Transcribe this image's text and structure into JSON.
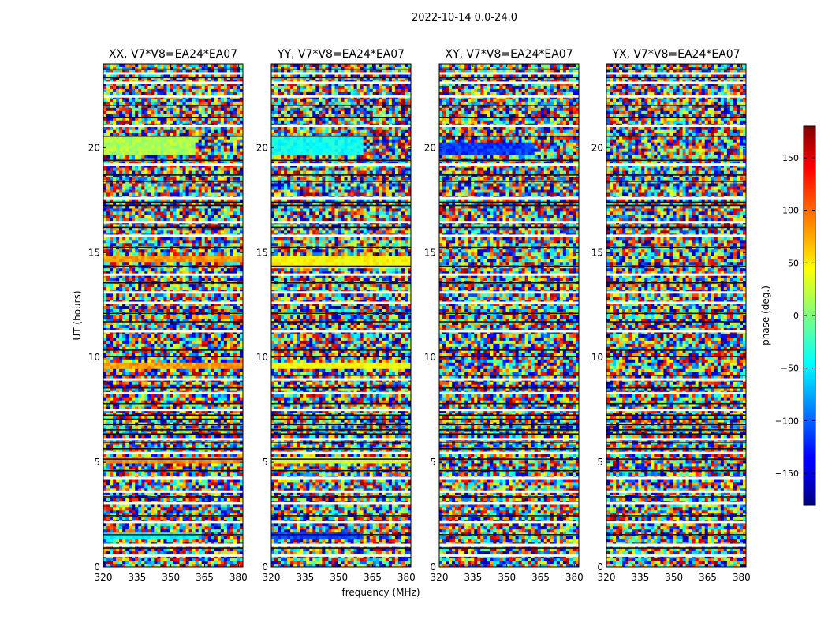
{
  "chart_data": {
    "type": "heatmap",
    "suptitle": "2022-10-14 0.0-24.0",
    "xlabel": "frequency (MHz)",
    "ylabel": "UT (hours)",
    "xlim": [
      320,
      382
    ],
    "ylim": [
      0,
      24
    ],
    "xticks": [
      320,
      335,
      350,
      365,
      380
    ],
    "yticks": [
      0,
      5,
      10,
      15,
      20
    ],
    "colorbar": {
      "label": "phase (deg.)",
      "range": [
        -180,
        180
      ],
      "ticks": [
        -150,
        -100,
        -50,
        0,
        50,
        100,
        150
      ],
      "tick_labels": [
        "−150",
        "−100",
        "−50",
        "0",
        "50",
        "100",
        "150"
      ],
      "colormap": "jet"
    },
    "panels": [
      {
        "title": "XX, V7*V8=EA24*EA07",
        "coherent_bands": [
          {
            "t0": 19.6,
            "t1": 20.5,
            "f_max": 361,
            "phase": 15
          },
          {
            "t0": 14.5,
            "t1": 14.8,
            "f_max": 382,
            "phase": 80
          },
          {
            "t0": 9.5,
            "t1": 9.8,
            "f_max": 382,
            "phase": 80
          },
          {
            "t0": 4.9,
            "t1": 5.2,
            "f_max": 382,
            "phase": 85
          },
          {
            "t0": 1.35,
            "t1": 1.7,
            "f_max": 361,
            "phase": -45
          }
        ]
      },
      {
        "title": "YY, V7*V8=EA24*EA07",
        "coherent_bands": [
          {
            "t0": 19.6,
            "t1": 20.5,
            "f_max": 361,
            "phase": -40
          },
          {
            "t0": 14.3,
            "t1": 14.8,
            "f_max": 382,
            "phase": 45
          },
          {
            "t0": 9.5,
            "t1": 9.8,
            "f_max": 382,
            "phase": 45
          },
          {
            "t0": 4.9,
            "t1": 5.2,
            "f_max": 382,
            "phase": 35
          },
          {
            "t0": 1.35,
            "t1": 1.7,
            "f_max": 361,
            "phase": -110
          }
        ]
      },
      {
        "title": "XY, V7*V8=EA24*EA07",
        "coherent_bands": [
          {
            "t0": 19.7,
            "t1": 20.3,
            "f_max": 362,
            "phase": -115
          }
        ]
      },
      {
        "title": "YX, V7*V8=EA24*EA07",
        "coherent_bands": []
      }
    ]
  }
}
